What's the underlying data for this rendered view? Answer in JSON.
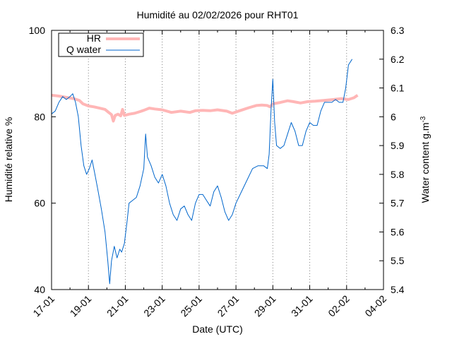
{
  "chart_data": {
    "type": "line",
    "title": "Humidité au 02/02/2026 pour RHT01",
    "xlabel": "Date (UTC)",
    "ylabel": "Humidité relative %",
    "y2label_text": "Water content g.m",
    "y2label_sup": "-3",
    "x_domain": [
      "17-01",
      "04-02"
    ],
    "x_ticks": [
      "17-01",
      "19-01",
      "21-01",
      "23-01",
      "25-01",
      "27-01",
      "29-01",
      "31-01",
      "02-02",
      "04-02"
    ],
    "y_range": [
      40,
      100
    ],
    "y_ticks": [
      "40",
      "60",
      "80",
      "100"
    ],
    "y2_range": [
      5.4,
      6.3
    ],
    "y2_ticks": [
      "5.4",
      "5.5",
      "5.6",
      "5.7",
      "5.8",
      "5.9",
      "6",
      "6.1",
      "6.2",
      "6.3"
    ],
    "grid": "vertical dotted lines at x ticks",
    "legend_position": "top-left",
    "series": [
      {
        "name": "HR",
        "axis": "left",
        "color": "#ffb6b6",
        "points": [
          [
            0.0,
            85.0
          ],
          [
            0.4,
            84.8
          ],
          [
            0.8,
            84.5
          ],
          [
            1.2,
            84.2
          ],
          [
            1.5,
            83.8
          ],
          [
            1.7,
            83.0
          ],
          [
            2.0,
            82.5
          ],
          [
            2.3,
            82.3
          ],
          [
            2.6,
            82.0
          ],
          [
            2.9,
            81.7
          ],
          [
            3.1,
            81.0
          ],
          [
            3.25,
            80.5
          ],
          [
            3.35,
            79.0
          ],
          [
            3.45,
            80.3
          ],
          [
            3.6,
            80.6
          ],
          [
            3.75,
            80.2
          ],
          [
            3.85,
            81.7
          ],
          [
            3.95,
            80.3
          ],
          [
            4.2,
            80.6
          ],
          [
            4.5,
            80.8
          ],
          [
            4.8,
            81.2
          ],
          [
            5.0,
            81.5
          ],
          [
            5.3,
            82.0
          ],
          [
            5.6,
            81.8
          ],
          [
            6.0,
            81.6
          ],
          [
            6.5,
            81.0
          ],
          [
            7.0,
            81.3
          ],
          [
            7.5,
            81.0
          ],
          [
            7.8,
            81.4
          ],
          [
            8.2,
            81.5
          ],
          [
            8.6,
            81.4
          ],
          [
            9.0,
            81.6
          ],
          [
            9.5,
            81.3
          ],
          [
            9.8,
            80.8
          ],
          [
            10.2,
            81.4
          ],
          [
            10.7,
            82.1
          ],
          [
            11.1,
            82.6
          ],
          [
            11.4,
            82.7
          ],
          [
            11.7,
            82.6
          ],
          [
            11.85,
            82.3
          ],
          [
            12.0,
            83.0
          ],
          [
            12.4,
            83.3
          ],
          [
            12.8,
            83.7
          ],
          [
            13.1,
            83.5
          ],
          [
            13.5,
            83.2
          ],
          [
            13.9,
            83.5
          ],
          [
            14.3,
            83.6
          ],
          [
            14.8,
            83.8
          ],
          [
            15.3,
            84.0
          ],
          [
            15.7,
            84.2
          ],
          [
            16.1,
            84.0
          ],
          [
            16.4,
            84.4
          ],
          [
            16.6,
            85.0
          ]
        ]
      },
      {
        "name": "Q water",
        "axis": "right",
        "color": "#0066cc",
        "points": [
          [
            0.0,
            6.01
          ],
          [
            0.2,
            6.02
          ],
          [
            0.4,
            6.05
          ],
          [
            0.6,
            6.07
          ],
          [
            0.8,
            6.06
          ],
          [
            1.0,
            6.07
          ],
          [
            1.15,
            6.08
          ],
          [
            1.3,
            6.05
          ],
          [
            1.45,
            6.0
          ],
          [
            1.6,
            5.9
          ],
          [
            1.75,
            5.83
          ],
          [
            1.9,
            5.8
          ],
          [
            2.05,
            5.82
          ],
          [
            2.2,
            5.85
          ],
          [
            2.35,
            5.8
          ],
          [
            2.5,
            5.75
          ],
          [
            2.7,
            5.68
          ],
          [
            2.9,
            5.6
          ],
          [
            3.05,
            5.5
          ],
          [
            3.15,
            5.42
          ],
          [
            3.25,
            5.5
          ],
          [
            3.4,
            5.55
          ],
          [
            3.55,
            5.51
          ],
          [
            3.7,
            5.54
          ],
          [
            3.8,
            5.53
          ],
          [
            3.95,
            5.56
          ],
          [
            4.1,
            5.64
          ],
          [
            4.2,
            5.7
          ],
          [
            4.4,
            5.71
          ],
          [
            4.6,
            5.72
          ],
          [
            4.8,
            5.76
          ],
          [
            5.0,
            5.82
          ],
          [
            5.1,
            5.94
          ],
          [
            5.2,
            5.86
          ],
          [
            5.4,
            5.83
          ],
          [
            5.6,
            5.79
          ],
          [
            5.8,
            5.77
          ],
          [
            6.0,
            5.8
          ],
          [
            6.2,
            5.76
          ],
          [
            6.4,
            5.7
          ],
          [
            6.6,
            5.66
          ],
          [
            6.8,
            5.64
          ],
          [
            7.0,
            5.68
          ],
          [
            7.2,
            5.69
          ],
          [
            7.4,
            5.66
          ],
          [
            7.6,
            5.64
          ],
          [
            7.8,
            5.7
          ],
          [
            8.0,
            5.73
          ],
          [
            8.2,
            5.73
          ],
          [
            8.4,
            5.71
          ],
          [
            8.6,
            5.69
          ],
          [
            8.8,
            5.74
          ],
          [
            9.0,
            5.76
          ],
          [
            9.2,
            5.72
          ],
          [
            9.4,
            5.67
          ],
          [
            9.6,
            5.64
          ],
          [
            9.8,
            5.66
          ],
          [
            10.0,
            5.7
          ],
          [
            10.3,
            5.74
          ],
          [
            10.6,
            5.78
          ],
          [
            10.9,
            5.82
          ],
          [
            11.2,
            5.83
          ],
          [
            11.5,
            5.83
          ],
          [
            11.7,
            5.82
          ],
          [
            11.8,
            5.87
          ],
          [
            11.9,
            6.02
          ],
          [
            12.0,
            6.13
          ],
          [
            12.1,
            5.98
          ],
          [
            12.2,
            5.9
          ],
          [
            12.4,
            5.89
          ],
          [
            12.6,
            5.9
          ],
          [
            12.8,
            5.94
          ],
          [
            13.0,
            5.98
          ],
          [
            13.2,
            5.95
          ],
          [
            13.4,
            5.9
          ],
          [
            13.6,
            5.9
          ],
          [
            13.8,
            5.95
          ],
          [
            14.0,
            5.98
          ],
          [
            14.2,
            5.97
          ],
          [
            14.4,
            5.97
          ],
          [
            14.6,
            6.02
          ],
          [
            14.8,
            6.05
          ],
          [
            15.0,
            6.05
          ],
          [
            15.2,
            6.05
          ],
          [
            15.4,
            6.06
          ],
          [
            15.6,
            6.05
          ],
          [
            15.8,
            6.05
          ],
          [
            15.95,
            6.1
          ],
          [
            16.1,
            6.18
          ],
          [
            16.3,
            6.2
          ]
        ]
      }
    ]
  }
}
